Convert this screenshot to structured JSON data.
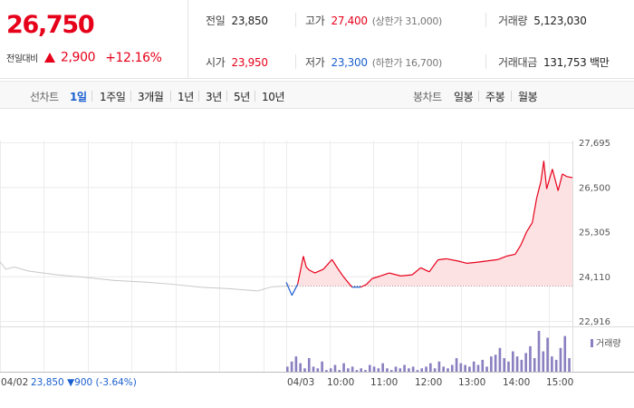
{
  "header": {
    "price": "26,750",
    "change_label": "전일대비",
    "change_amount": "2,900",
    "change_percent": "+12.16%",
    "stats": {
      "prev_close": {
        "label": "전일",
        "value": "23,850"
      },
      "high": {
        "label": "고가",
        "value": "27,400",
        "sub": "(상한가 31,000)"
      },
      "volume": {
        "label": "거래량",
        "value": "5,123,030"
      },
      "open": {
        "label": "시가",
        "value": "23,950"
      },
      "low": {
        "label": "저가",
        "value": "23,300",
        "sub": "(하한가 16,700)"
      },
      "trade_value": {
        "label": "거래대금",
        "value": "131,753 백만"
      }
    }
  },
  "period_bar": {
    "line_label": "선차트",
    "line_options": [
      "1일",
      "1주일",
      "3개월",
      "1년",
      "3년",
      "5년",
      "10년"
    ],
    "selected": "1일",
    "candle_label": "봉차트",
    "candle_options": [
      "일봉",
      "주봉",
      "월봉"
    ]
  },
  "colors": {
    "up": "#e6001a",
    "down": "#1a5fcf",
    "prev_day": "#c8c8c8",
    "volume": "#8a7fc0"
  },
  "chart_data": [
    {
      "type": "line",
      "title": "",
      "y_ticks": [
        "27,695",
        "26,500",
        "25,305",
        "24,110",
        "22,916"
      ],
      "ylim": [
        22916,
        27695
      ],
      "reference_line": 23850,
      "prev_day_label": "04/02",
      "prev_day_close": "23,850",
      "prev_day_change": "900",
      "prev_day_change_percent": "(-3.64%)",
      "today_label": "04/03",
      "x_ticks": [
        "10:00",
        "11:00",
        "12:00",
        "13:00",
        "14:00",
        "15:00"
      ],
      "series": [
        {
          "x": [
            0,
            0.02,
            0.05,
            0.1,
            0.2,
            0.3,
            0.4,
            0.5,
            0.6,
            0.7,
            0.8,
            0.9,
            0.95,
            1.0
          ],
          "y": [
            24500,
            24300,
            24360,
            24250,
            24150,
            24080,
            24000,
            23960,
            23900,
            23820,
            23780,
            23720,
            23830,
            23850
          ]
        },
        {
          "x": [
            0,
            0.02,
            0.04,
            0.06,
            0.07,
            0.08,
            0.1,
            0.13,
            0.16,
            0.18,
            0.2,
            0.23,
            0.26,
            0.28,
            0.3,
            0.33,
            0.36,
            0.4,
            0.44,
            0.47,
            0.5,
            0.53,
            0.56,
            0.6,
            0.63,
            0.66,
            0.7,
            0.74,
            0.77,
            0.8,
            0.82,
            0.84,
            0.86,
            0.875,
            0.89,
            0.9,
            0.91,
            0.93,
            0.95,
            0.965,
            0.98,
            1.0
          ],
          "y": [
            23950,
            23600,
            23900,
            24650,
            24360,
            24280,
            24200,
            24300,
            24560,
            24320,
            24100,
            23820,
            23820,
            23890,
            24050,
            24120,
            24200,
            24120,
            24150,
            24340,
            24230,
            24550,
            24580,
            24520,
            24460,
            24480,
            24520,
            24560,
            24650,
            24700,
            24950,
            25300,
            25550,
            26200,
            26650,
            27200,
            26450,
            26980,
            26400,
            26850,
            26780,
            26750
          ]
        }
      ]
    },
    {
      "type": "bar",
      "legend": "거래량",
      "values": [
        3,
        6,
        9,
        5,
        2,
        8,
        3,
        2,
        6,
        1,
        2,
        4,
        1,
        5,
        2,
        3,
        1,
        2,
        1,
        4,
        3,
        2,
        5,
        2,
        1,
        3,
        2,
        4,
        2,
        3,
        1,
        2,
        3,
        5,
        2,
        6,
        3,
        2,
        4,
        8,
        5,
        4,
        3,
        6,
        4,
        7,
        3,
        9,
        10,
        14,
        8,
        6,
        12,
        9,
        7,
        11,
        15,
        8,
        24,
        12,
        20,
        9,
        7,
        14,
        21,
        8
      ]
    }
  ]
}
